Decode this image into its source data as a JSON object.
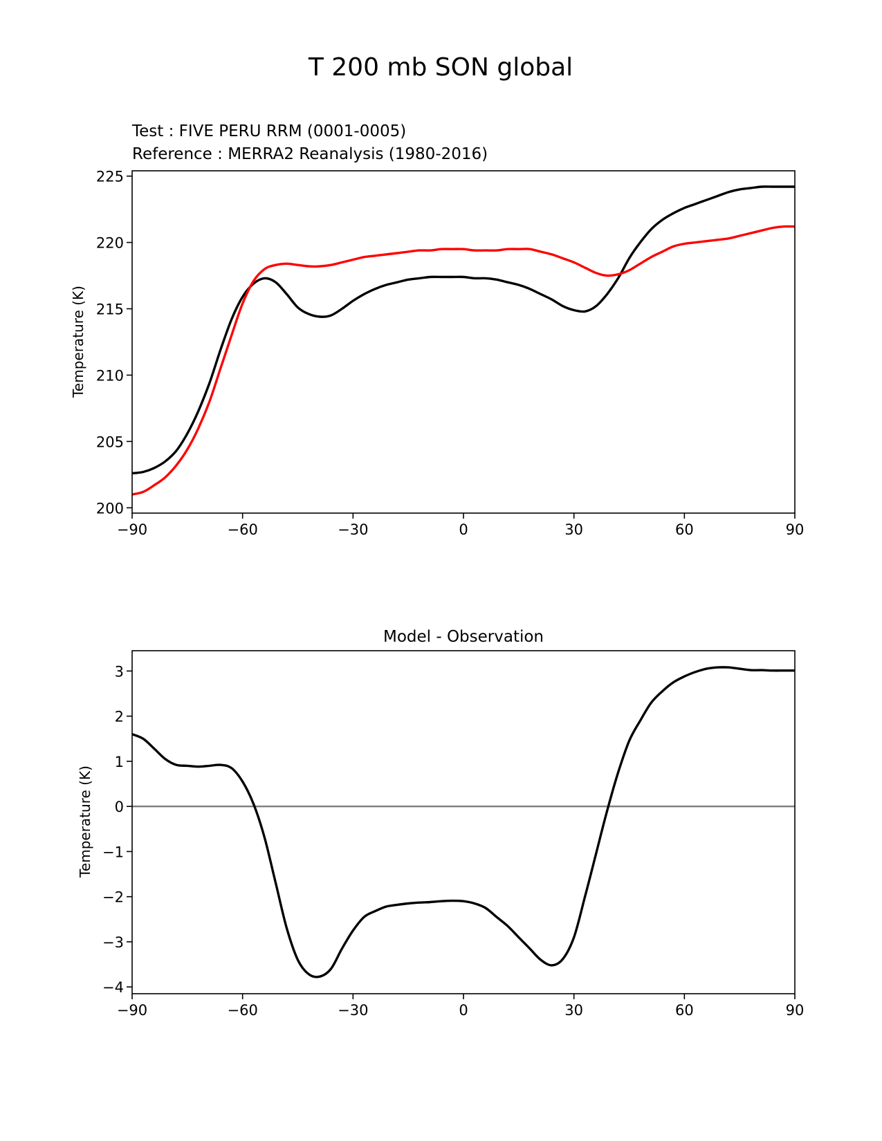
{
  "figure_title": "T 200 mb SON global",
  "colors": {
    "test": "#000000",
    "reference": "#ff0000",
    "zero_line": "#808080"
  },
  "chart_data": [
    {
      "type": "line",
      "test_label": "Test : FIVE PERU RRM (0001-0005)",
      "reference_label": "Reference : MERRA2 Reanalysis (1980-2016)",
      "xlabel": "",
      "ylabel": "Temperature (K)",
      "xlim": [
        -90,
        90
      ],
      "ylim": [
        199.6,
        225.4
      ],
      "xticks": [
        -90,
        -60,
        -30,
        0,
        30,
        60,
        90
      ],
      "xtick_labels": [
        "−90",
        "−60",
        "−30",
        "0",
        "30",
        "60",
        "90"
      ],
      "yticks": [
        200,
        205,
        210,
        215,
        220,
        225
      ],
      "ytick_labels": [
        "200",
        "205",
        "210",
        "215",
        "220",
        "225"
      ],
      "series": [
        {
          "name": "Test",
          "color": "#000000",
          "x": [
            -90,
            -87,
            -84,
            -81,
            -78,
            -75,
            -72,
            -69,
            -66,
            -63,
            -60,
            -57,
            -54,
            -51,
            -48,
            -45,
            -42,
            -39,
            -36,
            -33,
            -30,
            -27,
            -24,
            -21,
            -18,
            -15,
            -12,
            -9,
            -6,
            -3,
            0,
            3,
            6,
            9,
            12,
            15,
            18,
            21,
            24,
            27,
            30,
            33,
            36,
            39,
            42,
            45,
            48,
            51,
            54,
            57,
            60,
            63,
            66,
            69,
            72,
            75,
            78,
            81,
            84,
            87,
            90
          ],
          "values": [
            202.6,
            202.7,
            203.0,
            203.5,
            204.3,
            205.6,
            207.3,
            209.4,
            211.9,
            214.2,
            215.9,
            216.9,
            217.3,
            217.0,
            216.1,
            215.1,
            214.6,
            214.4,
            214.5,
            215.0,
            215.6,
            216.1,
            216.5,
            216.8,
            217.0,
            217.2,
            217.3,
            217.4,
            217.4,
            217.4,
            217.4,
            217.3,
            217.3,
            217.2,
            217.0,
            216.8,
            216.5,
            216.1,
            215.7,
            215.2,
            214.9,
            214.8,
            215.2,
            216.1,
            217.3,
            218.8,
            220.0,
            221.0,
            221.7,
            222.2,
            222.6,
            222.9,
            223.2,
            223.5,
            223.8,
            224.0,
            224.1,
            224.2,
            224.2,
            224.2,
            224.2
          ]
        },
        {
          "name": "Reference",
          "color": "#ff0000",
          "x": [
            -90,
            -87,
            -84,
            -81,
            -78,
            -75,
            -72,
            -69,
            -66,
            -63,
            -60,
            -57,
            -54,
            -51,
            -48,
            -45,
            -42,
            -39,
            -36,
            -33,
            -30,
            -27,
            -24,
            -21,
            -18,
            -15,
            -12,
            -9,
            -6,
            -3,
            0,
            3,
            6,
            9,
            12,
            15,
            18,
            21,
            24,
            27,
            30,
            33,
            36,
            39,
            42,
            45,
            48,
            51,
            54,
            57,
            60,
            63,
            66,
            69,
            72,
            75,
            78,
            81,
            84,
            87,
            90
          ],
          "values": [
            201.0,
            201.2,
            201.7,
            202.3,
            203.2,
            204.4,
            206.0,
            208.0,
            210.5,
            213.0,
            215.4,
            217.1,
            218.0,
            218.3,
            218.4,
            218.3,
            218.2,
            218.2,
            218.3,
            218.5,
            218.7,
            218.9,
            219.0,
            219.1,
            219.2,
            219.3,
            219.4,
            219.4,
            219.5,
            219.5,
            219.5,
            219.4,
            219.4,
            219.4,
            219.5,
            219.5,
            219.5,
            219.3,
            219.1,
            218.8,
            218.5,
            218.1,
            217.7,
            217.5,
            217.6,
            217.9,
            218.4,
            218.9,
            219.3,
            219.7,
            219.9,
            220.0,
            220.1,
            220.2,
            220.3,
            220.5,
            220.7,
            220.9,
            221.1,
            221.2,
            221.2
          ]
        }
      ]
    },
    {
      "type": "line",
      "title": "Model - Observation",
      "xlabel": "",
      "ylabel": "Temperature (K)",
      "xlim": [
        -90,
        90
      ],
      "ylim": [
        -4.15,
        3.45
      ],
      "xticks": [
        -90,
        -60,
        -30,
        0,
        30,
        60,
        90
      ],
      "xtick_labels": [
        "−90",
        "−60",
        "−30",
        "0",
        "30",
        "60",
        "90"
      ],
      "yticks": [
        -4,
        -3,
        -2,
        -1,
        0,
        1,
        2,
        3
      ],
      "ytick_labels": [
        "−4",
        "−3",
        "−2",
        "−1",
        "0",
        "1",
        "2",
        "3"
      ],
      "hline": 0,
      "series": [
        {
          "name": "Model - Observation",
          "color": "#000000",
          "x": [
            -90,
            -87,
            -84,
            -81,
            -78,
            -75,
            -72,
            -69,
            -66,
            -63,
            -60,
            -57,
            -54,
            -51,
            -48,
            -45,
            -42,
            -39,
            -36,
            -33,
            -30,
            -27,
            -24,
            -21,
            -18,
            -15,
            -12,
            -9,
            -6,
            -3,
            0,
            3,
            6,
            9,
            12,
            15,
            18,
            21,
            24,
            27,
            30,
            33,
            36,
            39,
            42,
            45,
            48,
            51,
            54,
            57,
            60,
            63,
            66,
            69,
            72,
            75,
            78,
            81,
            84,
            87,
            90
          ],
          "values": [
            1.6,
            1.5,
            1.28,
            1.05,
            0.92,
            0.9,
            0.88,
            0.9,
            0.92,
            0.85,
            0.55,
            0.05,
            -0.7,
            -1.7,
            -2.7,
            -3.4,
            -3.72,
            -3.77,
            -3.6,
            -3.15,
            -2.75,
            -2.45,
            -2.32,
            -2.22,
            -2.18,
            -2.15,
            -2.13,
            -2.12,
            -2.1,
            -2.09,
            -2.1,
            -2.15,
            -2.25,
            -2.45,
            -2.65,
            -2.9,
            -3.15,
            -3.4,
            -3.52,
            -3.38,
            -2.9,
            -2.0,
            -1.05,
            -0.1,
            0.75,
            1.45,
            1.9,
            2.3,
            2.55,
            2.75,
            2.88,
            2.98,
            3.05,
            3.08,
            3.08,
            3.05,
            3.02,
            3.02,
            3.01,
            3.01,
            3.01
          ]
        }
      ]
    }
  ]
}
